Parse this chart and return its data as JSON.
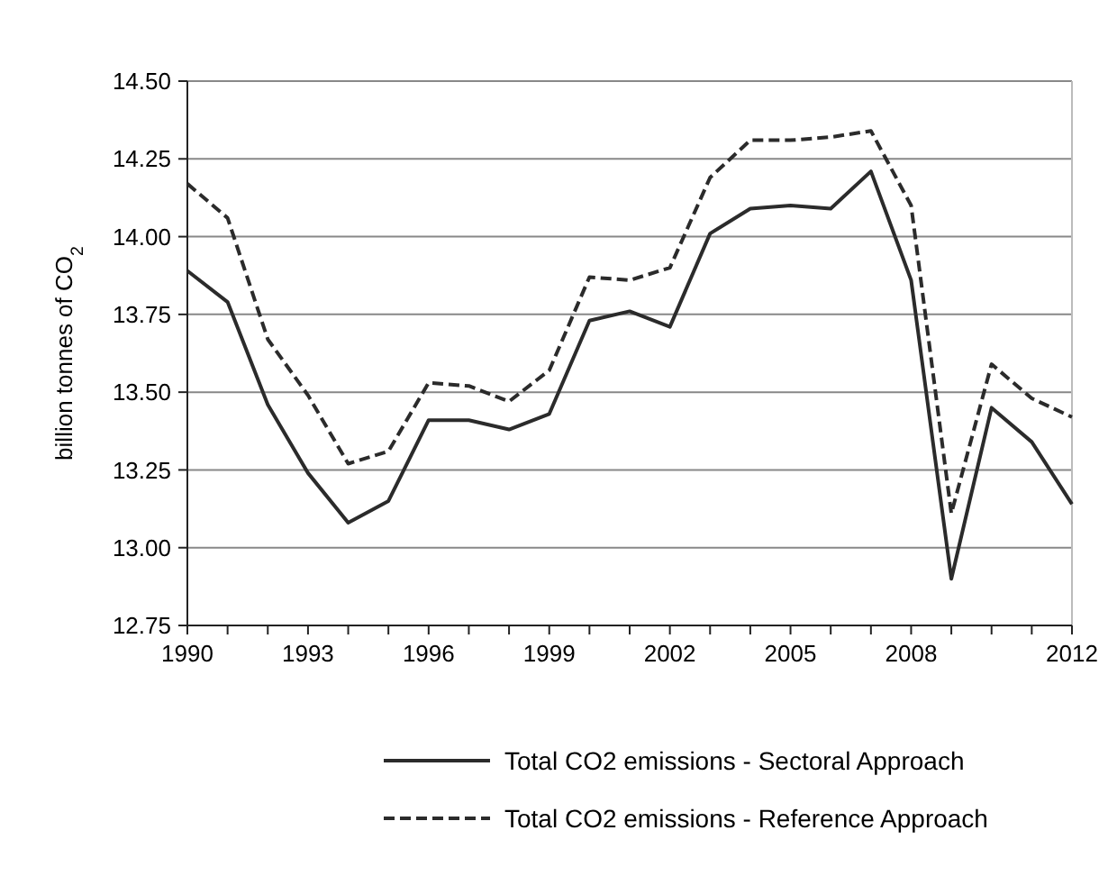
{
  "chart_data": {
    "type": "line",
    "ylabel": "billion tonnes of CO$_{2}$",
    "x": [
      1990,
      1991,
      1992,
      1993,
      1994,
      1995,
      1996,
      1997,
      1998,
      1999,
      2000,
      2001,
      2002,
      2003,
      2004,
      2005,
      2006,
      2007,
      2008,
      2009,
      2010,
      2011,
      2012
    ],
    "xlim": [
      1990,
      2012
    ],
    "xticks": [
      1990,
      {
        "value": 1991,
        "label": null
      },
      {
        "value": 1992,
        "label": null
      },
      1993,
      {
        "value": 1994,
        "label": null
      },
      {
        "value": 1995,
        "label": null
      },
      1996,
      {
        "value": 1997,
        "label": null
      },
      {
        "value": 1998,
        "label": null
      },
      1999,
      {
        "value": 2000,
        "label": null
      },
      {
        "value": 2001,
        "label": null
      },
      2002,
      {
        "value": 2003,
        "label": null
      },
      {
        "value": 2004,
        "label": null
      },
      2005,
      {
        "value": 2006,
        "label": null
      },
      {
        "value": 2007,
        "label": null
      },
      2008,
      {
        "value": 2009,
        "label": null
      },
      {
        "value": 2010,
        "label": null
      },
      {
        "value": 2011,
        "label": null
      },
      2012
    ],
    "ylim": [
      12.75,
      14.5
    ],
    "yticks": [
      {
        "value": 12.75,
        "label": "12.75"
      },
      {
        "value": 13,
        "label": "13.00"
      },
      {
        "value": 13.25,
        "label": "13.25"
      },
      {
        "value": 13.5,
        "label": "13.50"
      },
      {
        "value": 13.75,
        "label": "13.75"
      },
      {
        "value": 14,
        "label": "14.00"
      },
      {
        "value": 14.25,
        "label": "14.25"
      },
      {
        "value": 14.5,
        "label": "14.50"
      }
    ],
    "grid": "y",
    "legend": "bottom",
    "series": [
      {
        "name": "Total CO2 emissions - Sectoral Approach",
        "color": "#2b2b2b",
        "line_style": "solid",
        "values": [
          13.89,
          13.79,
          13.46,
          13.24,
          13.08,
          13.15,
          13.41,
          13.41,
          13.38,
          13.43,
          13.73,
          13.76,
          13.71,
          14.01,
          14.09,
          14.1,
          14.09,
          14.21,
          13.86,
          12.9,
          13.45,
          13.34,
          13.14
        ]
      },
      {
        "name": "Total CO2 emissions - Reference Approach",
        "color": "#2b2b2b",
        "line_style": "dashed",
        "values": [
          14.17,
          14.06,
          13.67,
          13.49,
          13.27,
          13.31,
          13.53,
          13.52,
          13.47,
          13.57,
          13.87,
          13.86,
          13.9,
          14.19,
          14.31,
          14.31,
          14.32,
          14.34,
          14.1,
          13.11,
          13.59,
          13.48,
          13.42
        ]
      }
    ]
  }
}
